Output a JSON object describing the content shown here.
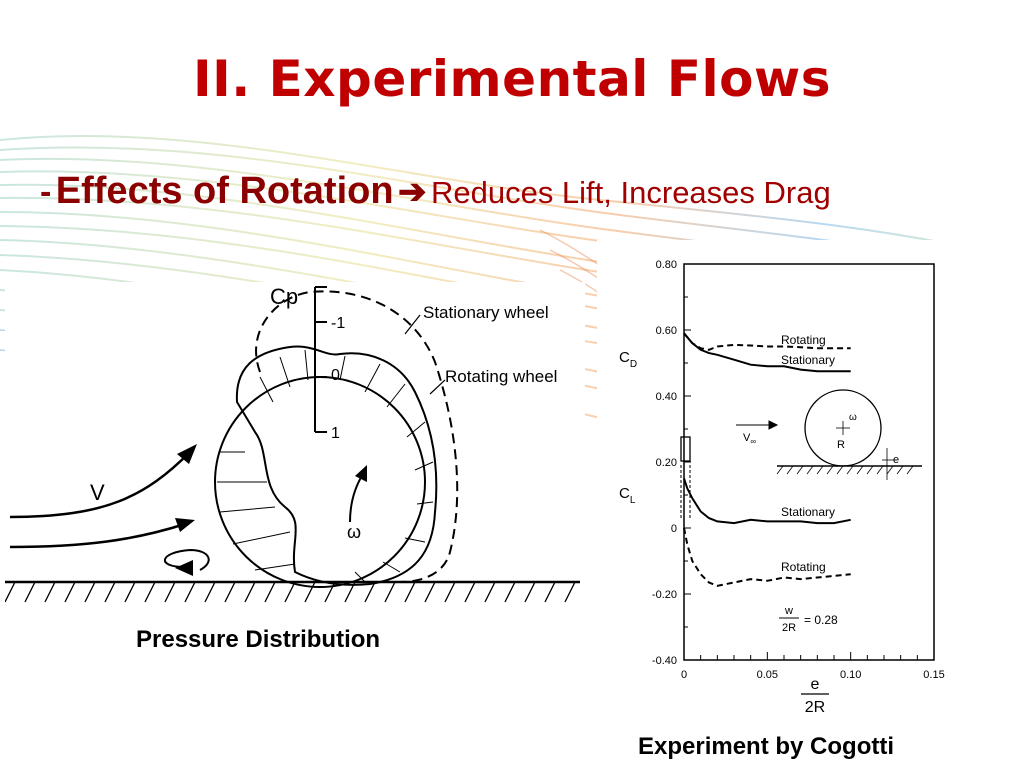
{
  "slide": {
    "title": "II. Experimental Flows",
    "bullet_dash": "-",
    "bullet_main": "Effects of Rotation",
    "bullet_arrow": "➔",
    "bullet_sub": "Reduces Lift, Increases Drag"
  },
  "pressure_diagram": {
    "cp_label": "Cp",
    "cp_tick_neg1": "-1",
    "cp_tick_0": "0",
    "cp_tick_1": "1",
    "stationary_label": "Stationary wheel",
    "rotating_label": "Rotating wheel",
    "velocity_label": "V",
    "omega_label": "ω",
    "caption": "Pressure Distribution"
  },
  "cogotti_plot": {
    "caption": "Experiment by Cogotti",
    "y_ticks": [
      "0.80",
      "0.60",
      "0.40",
      "0.20",
      "0",
      "-0.20",
      "-0.40"
    ],
    "x_ticks": [
      "0",
      "0.05",
      "0.10",
      "0.15"
    ],
    "cd_label": "C",
    "cd_sub": "D",
    "cl_label": "C",
    "cl_sub": "L",
    "xlabel_num": "e",
    "xlabel_den": "2R",
    "cd_rotating": "Rotating",
    "cd_stationary": "Stationary",
    "cl_stationary": "Stationary",
    "cl_rotating": "Rotating",
    "inset_v": "V",
    "inset_v_sub": "∞",
    "inset_r": "R",
    "inset_omega": "ω",
    "inset_e": "e",
    "w_num": "w",
    "w_den": "2R",
    "w_value": "= 0.28"
  },
  "chart_data": {
    "type": "line",
    "xlabel": "e/2R",
    "ylabel": "CD, CL",
    "xlim": [
      0,
      0.15
    ],
    "ylim": [
      -0.4,
      0.8
    ],
    "series": [
      {
        "name": "Rotating",
        "x": [
          0.0,
          0.005,
          0.01,
          0.015,
          0.02,
          0.03,
          0.04,
          0.05,
          0.06,
          0.07,
          0.08,
          0.09,
          0.1
        ],
        "values": [
          0.59,
          0.56,
          0.545,
          0.54,
          0.55,
          0.555,
          0.553,
          0.55,
          0.55,
          0.548,
          0.545,
          0.545,
          0.545
        ]
      },
      {
        "name": "Stationary",
        "x": [
          0.0,
          0.005,
          0.01,
          0.015,
          0.02,
          0.03,
          0.04,
          0.05,
          0.06,
          0.07,
          0.08,
          0.09,
          0.1
        ],
        "values": [
          0.59,
          0.56,
          0.54,
          0.53,
          0.525,
          0.51,
          0.495,
          0.49,
          0.49,
          0.48,
          0.475,
          0.475,
          0.475
        ]
      },
      {
        "name": "Stationary",
        "x": [
          0.0,
          0.002,
          0.005,
          0.01,
          0.015,
          0.02,
          0.03,
          0.04,
          0.05,
          0.06,
          0.07,
          0.08,
          0.09,
          0.1
        ],
        "values": [
          0.15,
          0.12,
          0.09,
          0.05,
          0.03,
          0.02,
          0.015,
          0.025,
          0.02,
          0.02,
          0.02,
          0.015,
          0.015,
          0.025
        ]
      },
      {
        "name": "Rotating",
        "x": [
          0.0,
          0.002,
          0.005,
          0.01,
          0.015,
          0.02,
          0.03,
          0.04,
          0.05,
          0.06,
          0.07,
          0.08,
          0.09,
          0.1
        ],
        "values": [
          0.0,
          -0.05,
          -0.1,
          -0.14,
          -0.165,
          -0.175,
          -0.165,
          -0.155,
          -0.16,
          -0.15,
          -0.155,
          -0.15,
          -0.145,
          -0.14
        ]
      }
    ]
  }
}
